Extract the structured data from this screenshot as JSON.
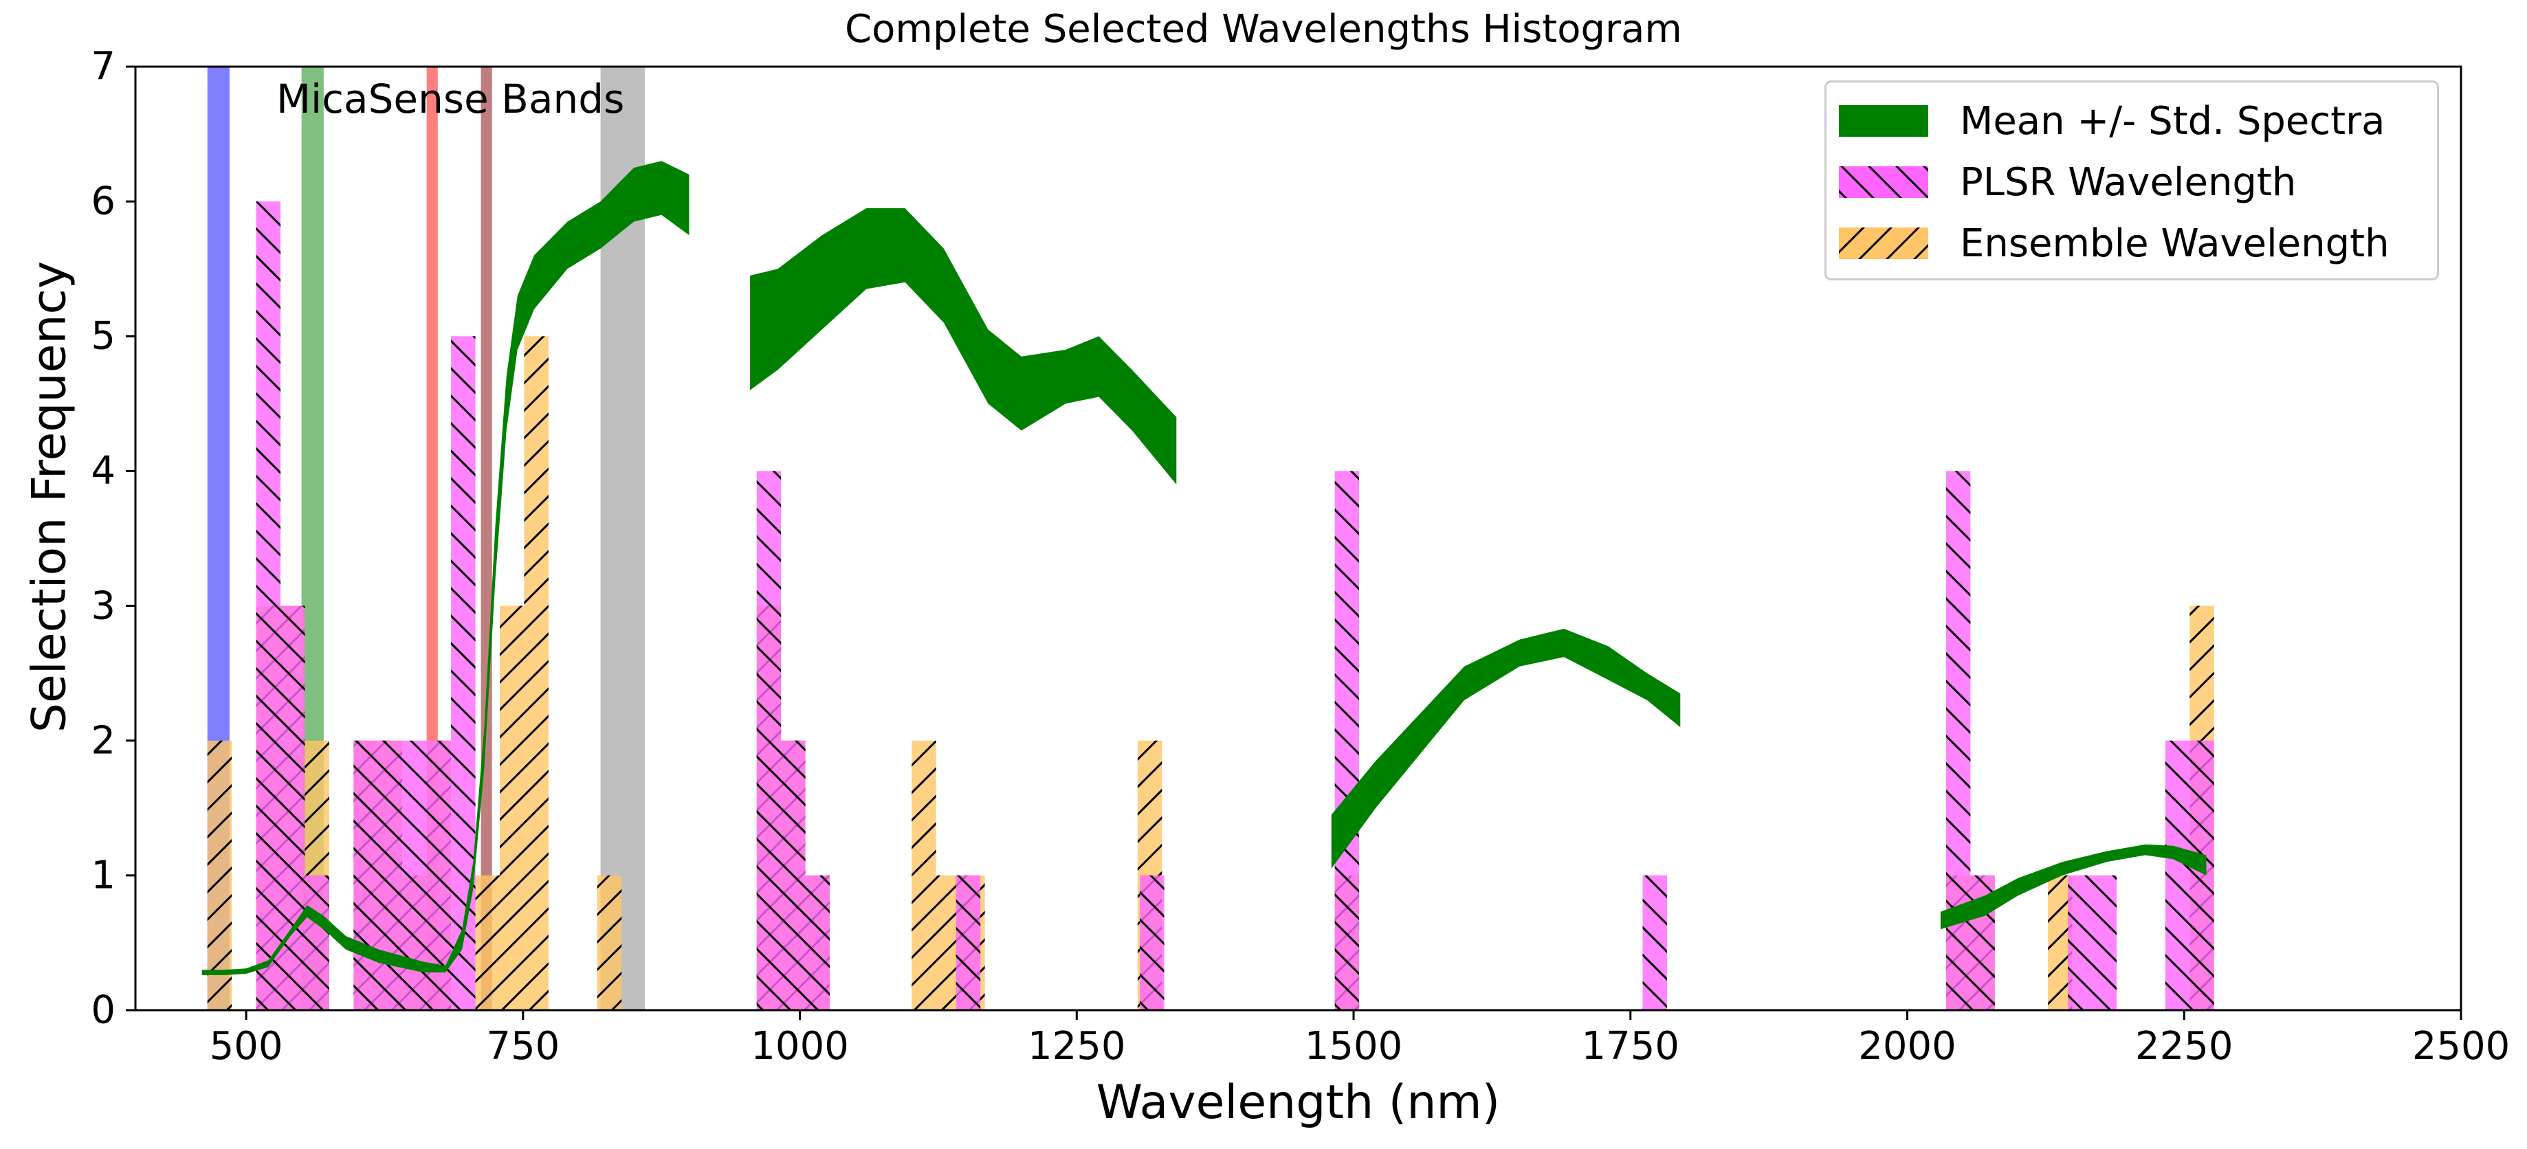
{
  "chart_data": {
    "type": "bar",
    "title": "Complete Selected Wavelengths Histogram",
    "xlabel": "Wavelength (nm)",
    "ylabel": "Selection Frequency",
    "xlim": [
      400,
      2500
    ],
    "ylim": [
      0,
      7
    ],
    "xticks": [
      500,
      750,
      1000,
      1250,
      1500,
      1750,
      2000,
      2250,
      2500
    ],
    "yticks": [
      0,
      1,
      2,
      3,
      4,
      5,
      6,
      7
    ],
    "bin_width": 22,
    "legend_position": "top-right",
    "legend": [
      {
        "label": "Mean +/- Std. Spectra",
        "color": "#008000",
        "kind": "band"
      },
      {
        "label": "PLSR Wavelength",
        "color": "#ff66ff",
        "kind": "bar",
        "hatch": "\\"
      },
      {
        "label": "Ensemble Wavelength",
        "color": "#ffc566",
        "kind": "bar",
        "hatch": "/"
      }
    ],
    "series": [
      {
        "name": "PLSR Wavelength",
        "color": "#ff66ff",
        "hatch": "\\",
        "bins": [
          [
            509,
            6
          ],
          [
            531,
            3
          ],
          [
            553,
            1
          ],
          [
            575,
            0
          ],
          [
            597,
            2
          ],
          [
            619,
            2
          ],
          [
            641,
            2
          ],
          [
            663,
            2
          ],
          [
            685,
            5
          ],
          [
            961,
            4
          ],
          [
            983,
            2
          ],
          [
            1005,
            1
          ],
          [
            1141,
            1
          ],
          [
            1307,
            1
          ],
          [
            1483,
            4
          ],
          [
            1761,
            1
          ],
          [
            2035,
            4
          ],
          [
            2057,
            1
          ],
          [
            2145,
            1
          ],
          [
            2167,
            1
          ],
          [
            2233,
            2
          ],
          [
            2255,
            2
          ]
        ]
      },
      {
        "name": "Ensemble Wavelength",
        "color": "#ffc566",
        "hatch": "/",
        "bins": [
          [
            465,
            2
          ],
          [
            509,
            3
          ],
          [
            531,
            3
          ],
          [
            553,
            2
          ],
          [
            575,
            0
          ],
          [
            597,
            2
          ],
          [
            619,
            2
          ],
          [
            641,
            1
          ],
          [
            663,
            2
          ],
          [
            707,
            1
          ],
          [
            729,
            3
          ],
          [
            751,
            5
          ],
          [
            817,
            1
          ],
          [
            961,
            3
          ],
          [
            983,
            2
          ],
          [
            1005,
            1
          ],
          [
            1101,
            2
          ],
          [
            1123,
            1
          ],
          [
            1145,
            1
          ],
          [
            1305,
            2
          ],
          [
            1483,
            1
          ],
          [
            2035,
            1
          ],
          [
            2057,
            1
          ],
          [
            2127,
            1
          ],
          [
            2255,
            3
          ]
        ]
      },
      {
        "name": "Mean +/- Std. Spectra",
        "color": "#008000",
        "kind": "band",
        "segments": [
          [
            [
              460,
              0.26,
              0.3
            ],
            [
              480,
              0.26,
              0.3
            ],
            [
              500,
              0.27,
              0.31
            ],
            [
              520,
              0.32,
              0.37
            ],
            [
              540,
              0.55,
              0.6
            ],
            [
              555,
              0.69,
              0.78
            ],
            [
              570,
              0.6,
              0.7
            ],
            [
              590,
              0.45,
              0.55
            ],
            [
              620,
              0.35,
              0.45
            ],
            [
              660,
              0.28,
              0.36
            ],
            [
              680,
              0.28,
              0.33
            ],
            [
              695,
              0.45,
              0.6
            ],
            [
              705,
              0.9,
              1.1
            ],
            [
              715,
              1.8,
              2.1
            ],
            [
              725,
              3.2,
              3.6
            ],
            [
              735,
              4.3,
              4.7
            ],
            [
              745,
              4.9,
              5.3
            ],
            [
              760,
              5.2,
              5.6
            ],
            [
              790,
              5.5,
              5.85
            ],
            [
              820,
              5.65,
              6.0
            ],
            [
              850,
              5.85,
              6.25
            ],
            [
              875,
              5.9,
              6.3
            ],
            [
              900,
              5.75,
              6.2
            ]
          ],
          [
            [
              955,
              4.6,
              5.45
            ],
            [
              980,
              4.75,
              5.5
            ],
            [
              1020,
              5.05,
              5.75
            ],
            [
              1060,
              5.35,
              5.95
            ],
            [
              1095,
              5.4,
              5.95
            ],
            [
              1130,
              5.1,
              5.65
            ],
            [
              1170,
              4.5,
              5.05
            ],
            [
              1200,
              4.3,
              4.85
            ],
            [
              1240,
              4.5,
              4.9
            ],
            [
              1270,
              4.55,
              5.0
            ],
            [
              1300,
              4.3,
              4.75
            ],
            [
              1340,
              3.9,
              4.4
            ]
          ],
          [
            [
              1480,
              1.05,
              1.45
            ],
            [
              1520,
              1.5,
              1.85
            ],
            [
              1560,
              1.9,
              2.2
            ],
            [
              1600,
              2.3,
              2.55
            ],
            [
              1650,
              2.55,
              2.75
            ],
            [
              1690,
              2.62,
              2.83
            ],
            [
              1730,
              2.45,
              2.7
            ],
            [
              1765,
              2.3,
              2.5
            ],
            [
              1795,
              2.1,
              2.35
            ]
          ],
          [
            [
              2030,
              0.6,
              0.73
            ],
            [
              2070,
              0.7,
              0.85
            ],
            [
              2100,
              0.85,
              0.98
            ],
            [
              2140,
              1.0,
              1.1
            ],
            [
              2180,
              1.1,
              1.18
            ],
            [
              2215,
              1.15,
              1.23
            ],
            [
              2240,
              1.12,
              1.22
            ],
            [
              2270,
              1.0,
              1.15
            ]
          ]
        ]
      }
    ],
    "micasense_bands": {
      "label": "MicaSense Bands",
      "bands": [
        {
          "center": 475,
          "width": 20,
          "color": "#0000ff",
          "alpha": 0.5,
          "height": 7
        },
        {
          "center": 560,
          "width": 20,
          "color": "#008000",
          "alpha": 0.5,
          "height": 7
        },
        {
          "center": 668,
          "width": 10,
          "color": "#ff0000",
          "alpha": 0.5,
          "height": 7
        },
        {
          "center": 717,
          "width": 10,
          "color": "#800000",
          "alpha": 0.5,
          "height": 7
        },
        {
          "center": 840,
          "width": 40,
          "color": "#808080",
          "alpha": 0.5,
          "height": 7
        }
      ]
    }
  }
}
